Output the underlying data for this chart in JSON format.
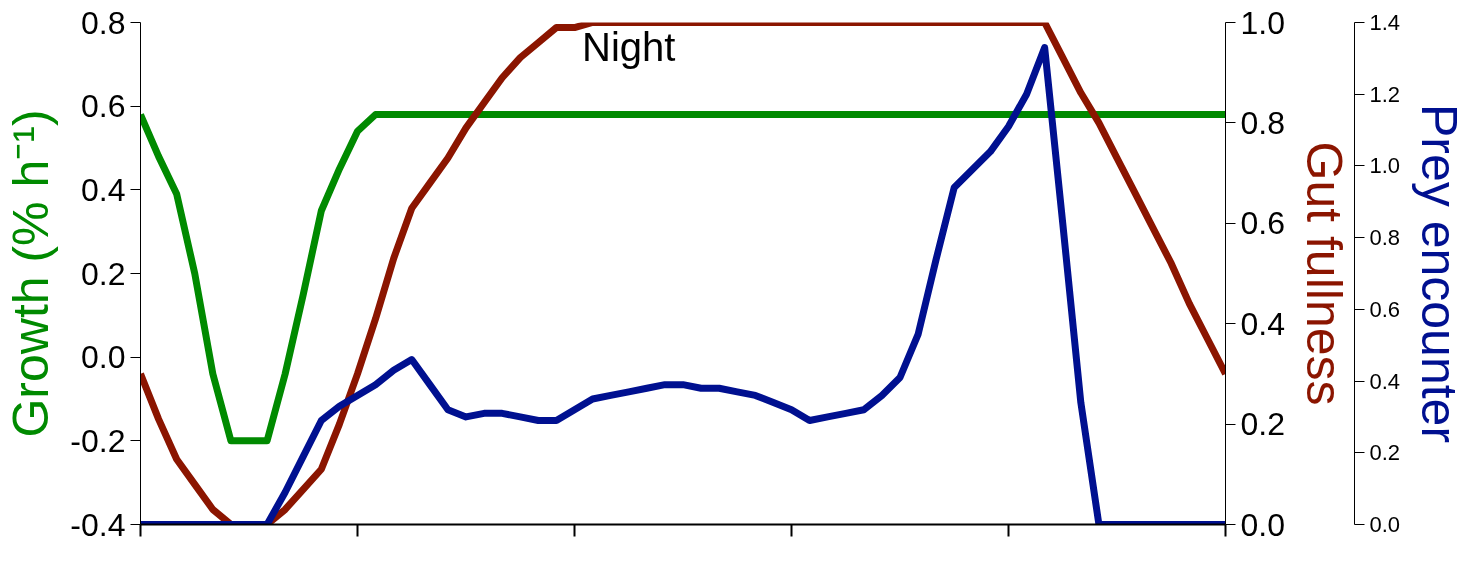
{
  "chart_data": {
    "type": "line",
    "ylabel": "Growth (% h⁻¹)",
    "y2label": "Gut fullness",
    "y3label": "Prey encounter",
    "categories": [
      null,
      null,
      null,
      null,
      null,
      null,
      null,
      null,
      null,
      null,
      null,
      null,
      null,
      null,
      null,
      null,
      null,
      null,
      null,
      null,
      null,
      null,
      null,
      null,
      null,
      null,
      null,
      null,
      null,
      null,
      null,
      null,
      null,
      null,
      null,
      null,
      null,
      null,
      null,
      null,
      null,
      null,
      null,
      null,
      null,
      null,
      null,
      null,
      null,
      null,
      null,
      null,
      null,
      null,
      null,
      null,
      null,
      null,
      null,
      null,
      null
    ],
    "ylim": [
      -0.4,
      0.8
    ],
    "yticks": [
      -0.4,
      -0.2,
      {
        "value": 0,
        "label": "0.0"
      },
      0.2,
      0.4,
      0.6,
      0.8
    ],
    "y2lim": [
      0,
      1.0
    ],
    "y2ticks": [
      {
        "value": 0,
        "label": "0.0"
      },
      0.2,
      0.4,
      0.6,
      0.8,
      {
        "value": 1,
        "label": "1.0"
      }
    ],
    "y3lim": [
      0,
      1.4
    ],
    "y3ticks": [
      {
        "value": 0,
        "label": "0.0"
      },
      0.2,
      0.4,
      0.6,
      0.8,
      {
        "value": 1,
        "label": "1.0"
      },
      1.2,
      1.4
    ],
    "tick_labels": "y",
    "marker": "none",
    "line_style": "solid",
    "annotations": [
      "Night"
    ],
    "series": [
      {
        "axis": "y",
        "color": "#008a00",
        "values": [
          0.58,
          0.48,
          0.39,
          0.2,
          -0.04,
          -0.2,
          -0.2,
          -0.2,
          -0.04,
          0.15,
          0.35,
          0.45,
          0.54,
          0.58,
          0.58,
          0.58,
          0.58,
          0.58,
          0.58,
          0.58,
          0.58,
          0.58,
          0.58,
          0.58,
          0.58,
          0.58,
          0.58,
          0.58,
          0.58,
          0.58,
          0.58,
          0.58,
          0.58,
          0.58,
          0.58,
          0.58,
          0.58,
          0.58,
          0.58,
          0.58,
          0.58,
          0.58,
          0.58,
          0.58,
          0.58,
          0.58,
          0.58,
          0.58,
          0.58,
          0.58,
          0.58,
          0.58,
          0.58,
          0.58,
          0.58,
          0.58,
          0.58,
          0.58,
          0.58,
          0.58,
          0.58
        ]
      },
      {
        "axis": "y2",
        "color": "#8b1500",
        "values": [
          0.3,
          0.21,
          0.13,
          0.08,
          0.03,
          0,
          0,
          0,
          0.03,
          0.07,
          0.11,
          0.2,
          0.3,
          0.41,
          0.53,
          0.63,
          0.68,
          0.73,
          0.79,
          0.84,
          0.89,
          0.93,
          0.96,
          0.99,
          0.99,
          1.0,
          1.0,
          1.0,
          1.0,
          1.0,
          1.0,
          1.0,
          1.0,
          1.0,
          1.0,
          1.0,
          1.0,
          1.0,
          1.0,
          1.0,
          1.0,
          1.0,
          1.0,
          1.0,
          1.0,
          1.0,
          1.0,
          1.0,
          1.0,
          1.0,
          1.0,
          0.93,
          0.86,
          0.8,
          0.73,
          0.66,
          0.59,
          0.52,
          0.44,
          0.37,
          0.3
        ]
      },
      {
        "axis": "y3",
        "color": "#001090",
        "values": [
          0,
          0,
          0,
          0,
          0,
          0,
          0,
          0,
          0.09,
          0.19,
          0.29,
          0.33,
          0.36,
          0.39,
          0.43,
          0.46,
          0.39,
          0.32,
          0.3,
          0.31,
          0.31,
          0.3,
          0.29,
          0.29,
          0.32,
          0.35,
          0.36,
          0.37,
          0.38,
          0.39,
          0.39,
          0.38,
          0.38,
          0.37,
          0.36,
          0.34,
          0.32,
          0.29,
          0.3,
          0.31,
          0.32,
          0.36,
          0.41,
          0.53,
          0.74,
          0.94,
          0.99,
          1.04,
          1.11,
          1.2,
          1.33,
          0.84,
          0.34,
          0,
          0,
          0,
          0,
          0,
          0,
          0,
          0
        ]
      }
    ]
  }
}
